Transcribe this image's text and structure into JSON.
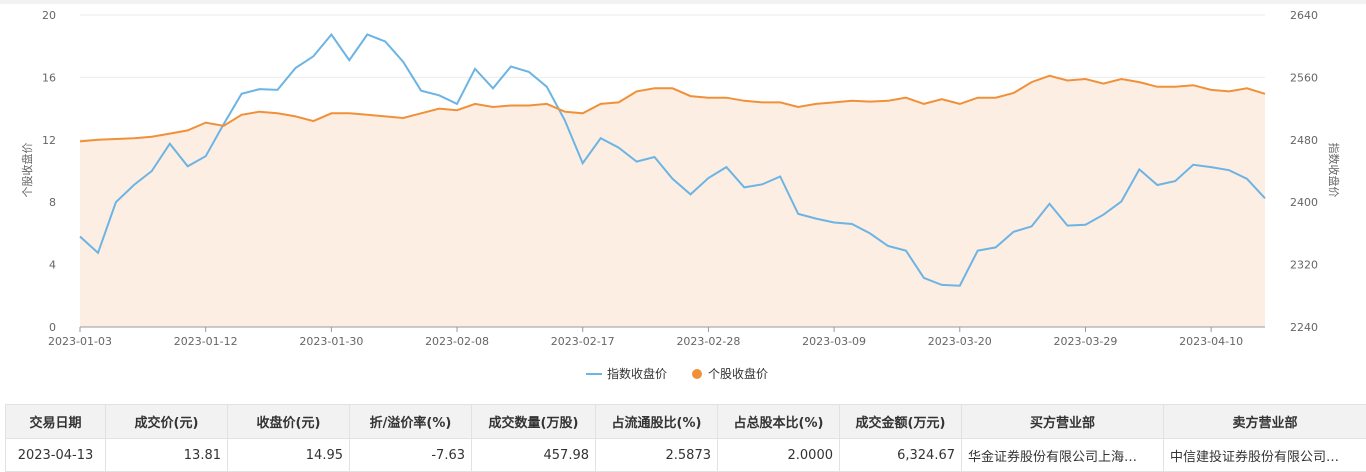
{
  "chart_data": {
    "type": "line",
    "x_tick_labels": [
      "2023-01-03",
      "2023-01-12",
      "2023-01-30",
      "2023-02-08",
      "2023-02-17",
      "2023-02-28",
      "2023-03-09",
      "2023-03-20",
      "2023-03-29",
      "2023-04-10"
    ],
    "x_tick_positions": [
      0,
      7,
      14,
      21,
      28,
      35,
      42,
      49,
      56,
      63
    ],
    "left_axis": {
      "label": "个股收盘价",
      "ylim": [
        0,
        20
      ],
      "ticks": [
        "0",
        "4",
        "8",
        "12",
        "16",
        "20"
      ]
    },
    "right_axis": {
      "label": "指数收盘价",
      "ylim": [
        2240,
        2640
      ],
      "ticks": [
        "2240",
        "2320",
        "2400",
        "2480",
        "2560",
        "2640"
      ]
    },
    "grid": true,
    "legend_position": "bottom",
    "series": [
      {
        "name": "指数收盘价",
        "axis": "right",
        "color": "#6cb4e4",
        "style": "line",
        "values": [
          2356,
          2335,
          2400,
          2422,
          2440,
          2475,
          2446,
          2459,
          2500,
          2539,
          2545,
          2544,
          2572,
          2587,
          2615,
          2582,
          2615,
          2606,
          2580,
          2543,
          2537,
          2526,
          2571,
          2546,
          2574,
          2567,
          2548,
          2505,
          2450,
          2482,
          2470,
          2452,
          2458,
          2430,
          2410,
          2431,
          2445,
          2419,
          2423,
          2433,
          2385,
          2379,
          2374,
          2372,
          2360,
          2344,
          2338,
          2303,
          2294,
          2293,
          2338,
          2342,
          2362,
          2369,
          2398,
          2370,
          2371,
          2384,
          2401,
          2442,
          2422,
          2427,
          2448,
          2445,
          2441,
          2430,
          2405
        ]
      },
      {
        "name": "个股收盘价",
        "axis": "left",
        "color": "#f0913a",
        "style": "area",
        "area_color": "#fdeee3",
        "values": [
          11.9,
          12.0,
          12.05,
          12.1,
          12.2,
          12.4,
          12.6,
          13.1,
          12.9,
          13.6,
          13.8,
          13.7,
          13.5,
          13.2,
          13.7,
          13.7,
          13.6,
          13.5,
          13.4,
          13.7,
          14.0,
          13.9,
          14.3,
          14.1,
          14.2,
          14.2,
          14.3,
          13.8,
          13.7,
          14.3,
          14.4,
          15.1,
          15.3,
          15.3,
          14.8,
          14.7,
          14.7,
          14.5,
          14.4,
          14.4,
          14.1,
          14.3,
          14.4,
          14.5,
          14.45,
          14.5,
          14.7,
          14.3,
          14.6,
          14.3,
          14.7,
          14.7,
          15.0,
          15.7,
          16.1,
          15.8,
          15.9,
          15.6,
          15.9,
          15.7,
          15.4,
          15.4,
          15.5,
          15.2,
          15.1,
          15.3,
          14.95
        ]
      }
    ]
  },
  "table": {
    "headers": [
      "交易日期",
      "成交价(元)",
      "收盘价(元)",
      "折/溢价率(%)",
      "成交数量(万股)",
      "占流通股比(%)",
      "占总股本比(%)",
      "成交金额(万元)",
      "买方营业部",
      "卖方营业部"
    ],
    "rows": [
      [
        "2023-04-13",
        "13.81",
        "14.95",
        "-7.63",
        "457.98",
        "2.5873",
        "2.0000",
        "6,324.67",
        "华金证券股份有限公司上海…",
        "中信建投证券股份有限公司…"
      ]
    ]
  }
}
